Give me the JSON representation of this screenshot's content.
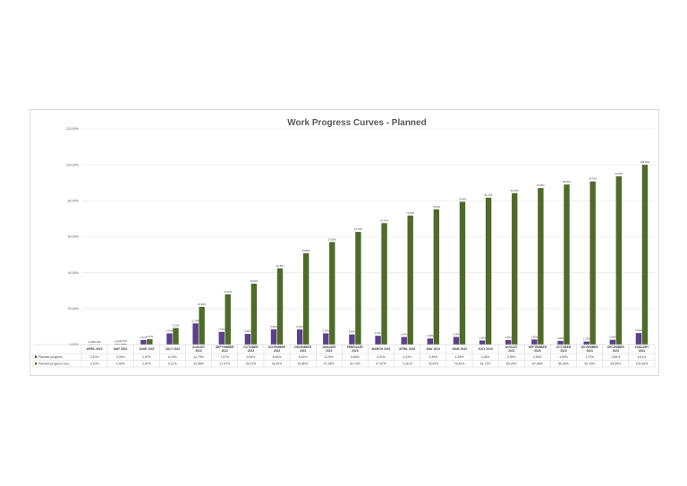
{
  "chart_data": {
    "type": "bar",
    "title": "Work Progress Curves - Planned",
    "ylim": [
      0,
      120
    ],
    "y_ticks": [
      "0,00%",
      "20,00%",
      "40,00%",
      "60,00%",
      "80,00%",
      "100,00%",
      "120,00%"
    ],
    "grid": true,
    "legend_placement": "data-table",
    "categories": [
      [
        "APRIL 2022"
      ],
      [
        "MAY 2022"
      ],
      [
        "JUNE 2022"
      ],
      [
        "JULY 2022"
      ],
      [
        "AUGUST",
        "2022"
      ],
      [
        "SEPTEMBER",
        "2022"
      ],
      [
        "OCTOBER",
        "2022"
      ],
      [
        "NOVEMBER",
        "2022"
      ],
      [
        "DECEMBER",
        "2022"
      ],
      [
        "JANUARY",
        "2023"
      ],
      [
        "FEBRUARY",
        "2023"
      ],
      [
        "MARCH 2023"
      ],
      [
        "APRIL 2023"
      ],
      [
        "MAY 2023"
      ],
      [
        "JUNE 2023"
      ],
      [
        "JULY 2023"
      ],
      [
        "AUGUST",
        "2023"
      ],
      [
        "SEPTEMBER",
        "2023"
      ],
      [
        "OCTOBER",
        "2023"
      ],
      [
        "NOVEMBER",
        "2023"
      ],
      [
        "DECEMBER",
        "2023"
      ],
      [
        "JANUARY",
        "2024"
      ]
    ],
    "series": [
      {
        "name": "Planned progress",
        "color": "#5b3f8c",
        "values": [
          0.1,
          0.3,
          2.57,
          6.24,
          11.79,
          7.07,
          5.94,
          8.49,
          8.4,
          6.25,
          5.66,
          4.91,
          4.24,
          3.39,
          4.26,
          2.26,
          2.55,
          2.83,
          1.99,
          1.7,
          2.65,
          6.41
        ],
        "labels": [
          "0,10%",
          "0,30%",
          "2,57%",
          "6,24%",
          "11,79%",
          "7,07%",
          "5,94%",
          "8,49%",
          "8,40%",
          "6,25%",
          "5,66%",
          "4,91%",
          "4,24%",
          "3,39%",
          "4,26%",
          "2,26%",
          "2,55%",
          "2,83%",
          "1,99%",
          "1,70%",
          "2,65%",
          "6,41%"
        ]
      },
      {
        "name": "Planned progress cum",
        "color": "#4e6b27",
        "values": [
          0.1,
          0.4,
          2.97,
          9.21,
          20.98,
          27.97,
          33.91,
          42.4,
          50.8,
          57.05,
          62.7,
          67.57,
          71.81,
          75.2,
          79.46,
          81.72,
          84.25,
          87.08,
          89.06,
          90.76,
          93.59,
          100.0
        ],
        "labels": [
          "0,10%",
          "0,40%",
          "2,97%",
          "9,21%",
          "20,98%",
          "27,97%",
          "33,91%",
          "42,40%",
          "50,80%",
          "57,05%",
          "62,70%",
          "67,57%",
          "71,81%",
          "75,20%",
          "79,46%",
          "81,72%",
          "84,25%",
          "87,08%",
          "89,06%",
          "90,76%",
          "93,59%",
          "100,00%"
        ]
      }
    ]
  }
}
